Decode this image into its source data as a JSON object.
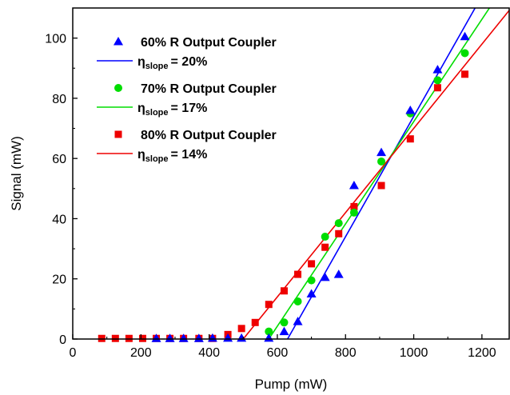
{
  "chart_data": {
    "type": "scatter",
    "xlabel": "Pump (mW)",
    "ylabel": "Signal (mW)",
    "xlim": [
      0,
      1280
    ],
    "ylim": [
      0,
      110
    ],
    "xticks": [
      0,
      200,
      400,
      600,
      800,
      1000,
      1200
    ],
    "yticks": [
      0,
      20,
      40,
      60,
      80,
      100
    ],
    "legend_position": "top-left",
    "series": [
      {
        "name": "60% R Output Coupler",
        "marker": "triangle",
        "color": "#0000ff",
        "x": [
          245,
          285,
          325,
          370,
          410,
          455,
          495,
          575,
          620,
          660,
          700,
          740,
          780,
          825,
          905,
          990,
          1070,
          1150
        ],
        "y": [
          0.2,
          0.2,
          0.2,
          0.2,
          0.3,
          0.3,
          0.3,
          0.3,
          2.5,
          5.8,
          15,
          20.5,
          21.5,
          51,
          62,
          76,
          89.5,
          100.5
        ]
      },
      {
        "name": "70% R Output Coupler",
        "marker": "circle",
        "color": "#00dd00",
        "x": [
          575,
          620,
          660,
          700,
          740,
          780,
          825,
          905,
          990,
          1070,
          1150
        ],
        "y": [
          2.5,
          5.5,
          12.5,
          19.5,
          34,
          38.5,
          42,
          59,
          75,
          86,
          95
        ]
      },
      {
        "name": "80% R Output Coupler",
        "marker": "square",
        "color": "#ee0000",
        "x": [
          85,
          125,
          165,
          205,
          245,
          285,
          325,
          370,
          410,
          455,
          495,
          535,
          575,
          620,
          660,
          700,
          740,
          780,
          825,
          905,
          990,
          1070,
          1150
        ],
        "y": [
          0.2,
          0.2,
          0.2,
          0.2,
          0.2,
          0.2,
          0.2,
          0.2,
          0.2,
          1.5,
          3.5,
          5.5,
          11.5,
          16,
          21.5,
          25,
          30.5,
          35,
          44,
          51,
          66.5,
          83.5,
          88
        ]
      }
    ],
    "fits": [
      {
        "name": "η slope = 20%",
        "label_main": "η",
        "label_sub": "slope",
        "label_value": "= 20%",
        "color": "#0000ff",
        "x": [
          630,
          1200
        ],
        "y": [
          0,
          114
        ]
      },
      {
        "name": "η slope = 17%",
        "label_main": "η",
        "label_sub": "slope",
        "label_value": "= 17%",
        "color": "#00dd00",
        "x": [
          575,
          1230
        ],
        "y": [
          0,
          111.35
        ]
      },
      {
        "name": "η slope = 14%",
        "label_main": "η",
        "label_sub": "slope",
        "label_value": "= 14%",
        "color": "#ee0000",
        "x": [
          500,
          1280
        ],
        "y": [
          0,
          109.2
        ]
      }
    ]
  }
}
